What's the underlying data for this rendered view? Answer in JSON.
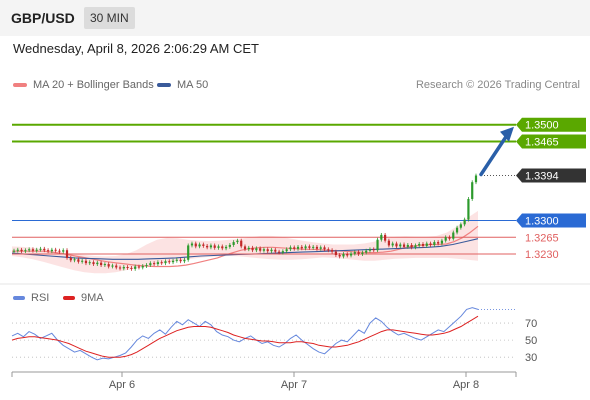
{
  "header": {
    "pair": "GBP/USD",
    "timeframe": "30 MIN",
    "datetime": "Wednesday, April 8, 2026 2:06:29 AM CET"
  },
  "legend": {
    "ma20_label": "MA 20 + Bollinger Bands",
    "ma50_label": "MA 50",
    "credit": "Research © 2026 Trading Central"
  },
  "colors": {
    "green_level": "#5aa800",
    "blue_level": "#2a6ad4",
    "red_level": "#e06060",
    "last_price": "#333333",
    "arrow": "#2a5fa8",
    "ma20": "#f08080",
    "ma50": "#3a5a9a",
    "rsi": "#6688dd",
    "rsi_ma": "#dd2222",
    "band_fill": "#fbdada"
  },
  "chart_data": [
    {
      "type": "candlestick",
      "x_tick_labels": [
        "Apr 6",
        "Apr 7",
        "Apr 8"
      ],
      "ylim": [
        1.318,
        1.356
      ],
      "price_levels": [
        {
          "label": "1.3500",
          "value": 1.35,
          "kind": "resistance"
        },
        {
          "label": "1.3465",
          "value": 1.3465,
          "kind": "resistance"
        },
        {
          "label": "1.3394",
          "value": 1.3394,
          "kind": "last"
        },
        {
          "label": "1.3300",
          "value": 1.33,
          "kind": "pivot"
        },
        {
          "label": "1.3265",
          "value": 1.3265,
          "kind": "support"
        },
        {
          "label": "1.3230",
          "value": 1.323,
          "kind": "support"
        }
      ],
      "arrow": {
        "from": 1.3394,
        "to": 1.35,
        "direction": "up"
      },
      "closes": [
        1.3237,
        1.3239,
        1.3236,
        1.3238,
        1.324,
        1.3237,
        1.3239,
        1.3241,
        1.3238,
        1.3236,
        1.3239,
        1.3237,
        1.3235,
        1.3238,
        1.3222,
        1.3217,
        1.3219,
        1.3214,
        1.3216,
        1.3211,
        1.3213,
        1.3209,
        1.3212,
        1.3207,
        1.3209,
        1.3204,
        1.3206,
        1.3202,
        1.32,
        1.3203,
        1.3201,
        1.3199,
        1.3204,
        1.3202,
        1.3205,
        1.3207,
        1.3211,
        1.3209,
        1.3213,
        1.3211,
        1.3215,
        1.3213,
        1.3216,
        1.3218,
        1.3215,
        1.3218,
        1.3248,
        1.3252,
        1.3246,
        1.325,
        1.3247,
        1.3244,
        1.3248,
        1.3243,
        1.3246,
        1.3242,
        1.3245,
        1.3249,
        1.3255,
        1.3258,
        1.3246,
        1.324,
        1.3243,
        1.3238,
        1.3242,
        1.3237,
        1.324,
        1.3236,
        1.3239,
        1.3235,
        1.3233,
        1.3236,
        1.324,
        1.3244,
        1.3241,
        1.3245,
        1.3242,
        1.3246,
        1.3243,
        1.3245,
        1.3241,
        1.3244,
        1.324,
        1.3238,
        1.3235,
        1.3228,
        1.3225,
        1.323,
        1.3227,
        1.3231,
        1.3234,
        1.323,
        1.3233,
        1.3237,
        1.324,
        1.3238,
        1.326,
        1.327,
        1.3258,
        1.3248,
        1.3252,
        1.3246,
        1.325,
        1.3245,
        1.3249,
        1.3244,
        1.3248,
        1.3251,
        1.3247,
        1.3252,
        1.3249,
        1.3255,
        1.3252,
        1.3258,
        1.3265,
        1.3262,
        1.3275,
        1.3285,
        1.3292,
        1.3302,
        1.3345,
        1.338,
        1.3394
      ],
      "opens": [
        1.3236,
        1.3237,
        1.3239,
        1.3236,
        1.3238,
        1.324,
        1.3237,
        1.3239,
        1.3241,
        1.3238,
        1.3236,
        1.3239,
        1.3237,
        1.3235,
        1.3238,
        1.3222,
        1.3217,
        1.3219,
        1.3214,
        1.3216,
        1.3211,
        1.3213,
        1.3209,
        1.3212,
        1.3207,
        1.3209,
        1.3204,
        1.3206,
        1.3202,
        1.32,
        1.3203,
        1.3201,
        1.3199,
        1.3204,
        1.3202,
        1.3205,
        1.3207,
        1.3211,
        1.3209,
        1.3213,
        1.3211,
        1.3215,
        1.3213,
        1.3216,
        1.3218,
        1.3215,
        1.3218,
        1.3248,
        1.3252,
        1.3246,
        1.325,
        1.3247,
        1.3244,
        1.3248,
        1.3243,
        1.3246,
        1.3242,
        1.3245,
        1.3249,
        1.3255,
        1.3258,
        1.3246,
        1.324,
        1.3243,
        1.3238,
        1.3242,
        1.3237,
        1.324,
        1.3236,
        1.3239,
        1.3235,
        1.3233,
        1.3236,
        1.324,
        1.3244,
        1.3241,
        1.3245,
        1.3242,
        1.3246,
        1.3243,
        1.3245,
        1.3241,
        1.3244,
        1.324,
        1.3238,
        1.3235,
        1.3228,
        1.3225,
        1.323,
        1.3227,
        1.3231,
        1.3234,
        1.323,
        1.3233,
        1.3237,
        1.324,
        1.3238,
        1.326,
        1.327,
        1.3258,
        1.3248,
        1.3252,
        1.3246,
        1.325,
        1.3245,
        1.3249,
        1.3244,
        1.3248,
        1.3251,
        1.3247,
        1.3252,
        1.3249,
        1.3255,
        1.3252,
        1.3258,
        1.3265,
        1.3262,
        1.3275,
        1.3285,
        1.3292,
        1.3302,
        1.3345,
        1.338
      ],
      "ma20": [
        1.3236,
        1.3236,
        1.3236,
        1.3236,
        1.3236,
        1.3234,
        1.3232,
        1.3229,
        1.3226,
        1.3223,
        1.322,
        1.3217,
        1.3214,
        1.3212,
        1.321,
        1.3208,
        1.3206,
        1.3205,
        1.3204,
        1.3204,
        1.3204,
        1.3205,
        1.3207,
        1.321,
        1.3214,
        1.3218,
        1.3222,
        1.3228,
        1.3233,
        1.3238,
        1.3241,
        1.3243,
        1.3244,
        1.3244,
        1.3243,
        1.3242,
        1.3241,
        1.324,
        1.324,
        1.3239,
        1.3238,
        1.3237,
        1.3236,
        1.3235,
        1.3234,
        1.3233,
        1.3233,
        1.3234,
        1.3236,
        1.324,
        1.3244,
        1.3247,
        1.3249,
        1.325,
        1.325,
        1.3251,
        1.3256,
        1.3264,
        1.3275,
        1.3288
      ],
      "ma50": [
        1.3232,
        1.323,
        1.3228,
        1.3226,
        1.3224,
        1.3222,
        1.3221,
        1.322,
        1.3219,
        1.3219,
        1.3219,
        1.322,
        1.3221,
        1.3222,
        1.3224,
        1.3226,
        1.3227,
        1.3228,
        1.3229,
        1.323,
        1.3231,
        1.3232,
        1.3233,
        1.3234,
        1.3235,
        1.3236,
        1.3237,
        1.3238,
        1.3239,
        1.324,
        1.3241,
        1.3242,
        1.3243,
        1.3244,
        1.3246,
        1.325,
        1.3256,
        1.3262
      ],
      "bollinger_upper": [
        1.3246,
        1.3245,
        1.3243,
        1.324,
        1.3237,
        1.3233,
        1.323,
        1.3228,
        1.3226,
        1.3225,
        1.3226,
        1.323,
        1.3238,
        1.325,
        1.326,
        1.3264,
        1.3263,
        1.326,
        1.3258,
        1.3257,
        1.3258,
        1.326,
        1.3262,
        1.3265,
        1.3268,
        1.3268,
        1.3266,
        1.3262,
        1.3258,
        1.3255,
        1.3252,
        1.325,
        1.325,
        1.325,
        1.3252,
        1.3256,
        1.3262,
        1.3266,
        1.3267,
        1.3266,
        1.3266,
        1.3268,
        1.3275,
        1.3288,
        1.3306,
        1.332
      ],
      "bollinger_lower": [
        1.3226,
        1.3223,
        1.3219,
        1.3214,
        1.3208,
        1.3202,
        1.3196,
        1.3192,
        1.319,
        1.319,
        1.3192,
        1.3196,
        1.32,
        1.3204,
        1.3208,
        1.3212,
        1.3216,
        1.3219,
        1.3222,
        1.3224,
        1.3225,
        1.3226,
        1.3225,
        1.3223,
        1.3221,
        1.3219,
        1.3218,
        1.3218,
        1.3219,
        1.3221,
        1.3223,
        1.3222,
        1.322,
        1.3218,
        1.3216,
        1.3216,
        1.3218,
        1.322,
        1.3221,
        1.3222,
        1.3222,
        1.3222,
        1.3222,
        1.322,
        1.3218,
        1.3216
      ]
    },
    {
      "type": "line",
      "title": "RSI",
      "legend": [
        "RSI",
        "9MA"
      ],
      "y_ticks": [
        "70",
        "50",
        "30"
      ],
      "ylim": [
        15,
        90
      ],
      "series": [
        {
          "name": "RSI",
          "values": [
            55,
            58,
            54,
            60,
            57,
            52,
            55,
            58,
            50,
            44,
            40,
            36,
            38,
            34,
            30,
            27,
            29,
            28,
            30,
            32,
            35,
            42,
            50,
            55,
            52,
            58,
            62,
            57,
            65,
            72,
            68,
            74,
            70,
            66,
            72,
            68,
            60,
            56,
            54,
            50,
            48,
            52,
            55,
            50,
            46,
            48,
            44,
            42,
            46,
            52,
            56,
            50,
            45,
            40,
            36,
            34,
            40,
            46,
            50,
            48,
            55,
            62,
            58,
            70,
            76,
            72,
            65,
            60,
            56,
            58,
            55,
            52,
            50,
            54,
            58,
            62,
            60,
            66,
            72,
            78,
            86,
            88,
            86
          ]
        },
        {
          "name": "9MA",
          "values": [
            50,
            52,
            53,
            54,
            54,
            53,
            52,
            51,
            50,
            48,
            46,
            43,
            40,
            37,
            35,
            33,
            31,
            30,
            30,
            30,
            31,
            33,
            36,
            40,
            44,
            48,
            52,
            55,
            58,
            61,
            63,
            65,
            66,
            66,
            66,
            65,
            63,
            61,
            59,
            56,
            54,
            52,
            51,
            50,
            49,
            49,
            48,
            47,
            47,
            47,
            48,
            48,
            47,
            46,
            44,
            43,
            42,
            42,
            43,
            44,
            46,
            48,
            51,
            54,
            57,
            60,
            62,
            62,
            61,
            60,
            59,
            58,
            57,
            56,
            56,
            57,
            58,
            60,
            63,
            66,
            70,
            74,
            78
          ]
        }
      ]
    }
  ]
}
